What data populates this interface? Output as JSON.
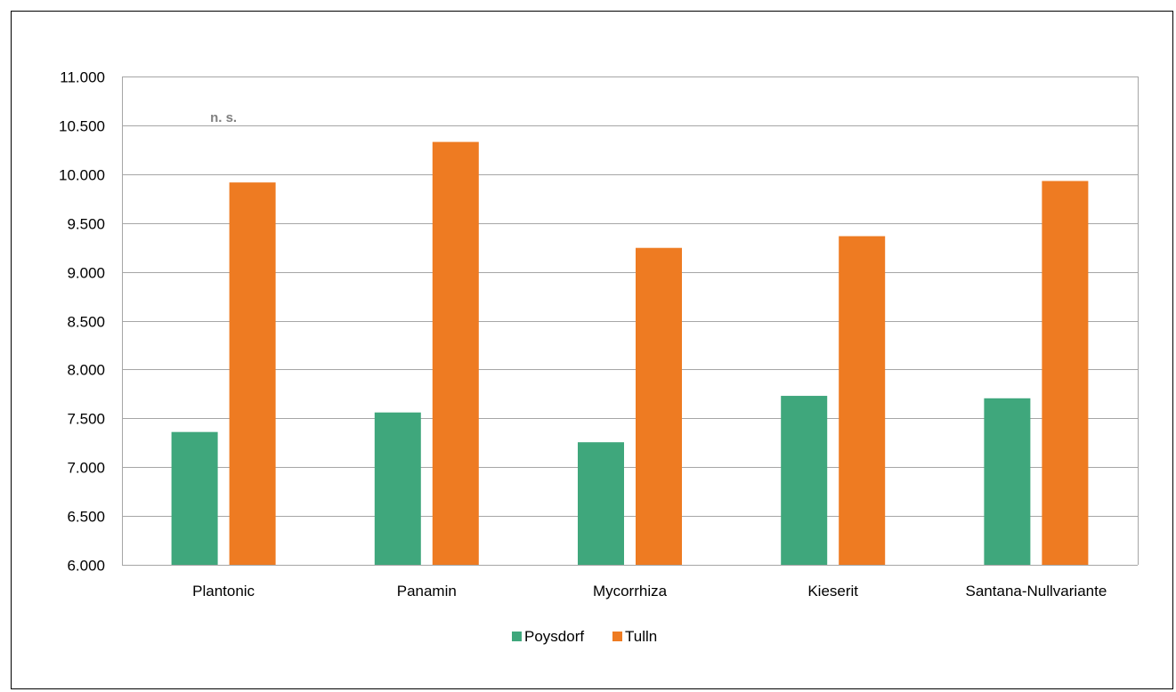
{
  "chart_data": {
    "type": "bar",
    "categories": [
      "Plantonic",
      "Panamin",
      "Mycorrhiza",
      "Kieserit",
      "Santana-Nullvariante"
    ],
    "series": [
      {
        "name": "Poysdorf",
        "color": "#3fa77c",
        "values": [
          7360,
          7560,
          7255,
          7730,
          7705
        ]
      },
      {
        "name": "Tulln",
        "color": "#ee7b22",
        "values": [
          9915,
          10330,
          9245,
          9365,
          9930
        ]
      }
    ],
    "ylim": [
      6000,
      11000
    ],
    "yticks": [
      "6.000",
      "6.500",
      "7.000",
      "7.500",
      "8.000",
      "8.500",
      "9.000",
      "9.500",
      "10.000",
      "10.500",
      "11.000"
    ],
    "ytick_values": [
      6000,
      6500,
      7000,
      7500,
      8000,
      8500,
      9000,
      9500,
      10000,
      10500,
      11000
    ],
    "grid": true,
    "legend_position": "bottom",
    "annotations": [
      {
        "text": "n. s.",
        "category": "Plantonic"
      }
    ],
    "title": "",
    "xlabel": "",
    "ylabel": ""
  }
}
